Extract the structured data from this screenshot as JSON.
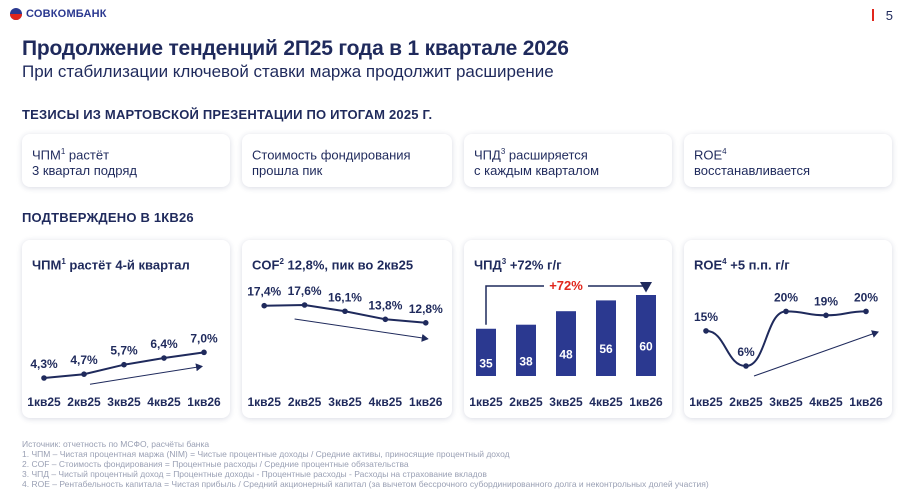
{
  "header": {
    "logo_text": "СОВКОМБАНК",
    "page_number": "5",
    "title": "Продолжение тенденций 2П25 года в 1 квартале 2026",
    "subtitle": "При стабилизации ключевой ставки маржа продолжит расширение"
  },
  "sections": {
    "theses_title": "ТЕЗИСЫ ИЗ МАРТОВСКОЙ ПРЕЗЕНТАЦИИ ПО ИТОГАМ 2025 Г.",
    "confirmed_title": "ПОДТВЕРЖДЕНО В 1КВ26"
  },
  "theses": [
    {
      "label": "ЧПМ",
      "sup": "1",
      "text": "растёт\n3 квартал подряд"
    },
    {
      "label": "Стоимость фондирования",
      "sup": "",
      "text": "\nпрошла пик"
    },
    {
      "label": "ЧПД",
      "sup": "3",
      "text": "расширяется\nс каждым кварталом"
    },
    {
      "label": "ROE",
      "sup": "4",
      "text": "\nвосстанавливается"
    }
  ],
  "cards": [
    {
      "label": "ЧПМ",
      "sup": "1",
      "text": "растёт 4-й квартал"
    },
    {
      "label": "COF",
      "sup": "2",
      "text": "12,8%, пик во 2кв25"
    },
    {
      "label": "ЧПД",
      "sup": "3",
      "text": "+72% г/г"
    },
    {
      "label": "ROE",
      "sup": "4",
      "text": "+5 п.п. г/г"
    }
  ],
  "colors": {
    "navy": "#1f2a5c",
    "bar": "#2b3990",
    "accent_red": "#e1261c",
    "footnote": "#9aa0b4"
  },
  "chart_data": [
    {
      "type": "line",
      "categories": [
        "1кв25",
        "2кв25",
        "3кв25",
        "4кв25",
        "1кв26"
      ],
      "values": [
        4.3,
        4.7,
        5.7,
        6.4,
        7.0
      ],
      "value_labels": [
        "4,3%",
        "4,7%",
        "5,7%",
        "6,4%",
        "7,0%"
      ],
      "trend": "up"
    },
    {
      "type": "line",
      "categories": [
        "1кв25",
        "2кв25",
        "3кв25",
        "4кв25",
        "1кв26"
      ],
      "values": [
        17.4,
        17.6,
        16.1,
        13.8,
        12.8
      ],
      "value_labels": [
        "17,4%",
        "17,6%",
        "16,1%",
        "13,8%",
        "12,8%"
      ],
      "trend": "down"
    },
    {
      "type": "bar",
      "categories": [
        "1кв25",
        "2кв25",
        "3кв25",
        "4кв25",
        "1кв26"
      ],
      "values": [
        35,
        38,
        48,
        56,
        60
      ],
      "value_labels": [
        "35",
        "38",
        "48",
        "56",
        "60"
      ],
      "annotation": "+72%"
    },
    {
      "type": "line",
      "categories": [
        "1кв25",
        "2кв25",
        "3кв25",
        "4кв25",
        "1кв26"
      ],
      "values": [
        15,
        6,
        20,
        19,
        20
      ],
      "value_labels": [
        "15%",
        "6%",
        "20%",
        "19%",
        "20%"
      ],
      "trend": "up"
    }
  ],
  "footnotes": [
    "Источник: отчетность по МСФО, расчёты банка",
    "1.    ЧПМ – Чистая процентная маржа (NIM) = Чистые процентные доходы / Средние активы, приносящие процентный доход",
    "2.    COF – Стоимость фондирования = Процентные расходы / Средние процентные обязательства",
    "3.    ЧПД – Чистый процентный доход = Процентные доходы - Процентные расходы - Расходы на страхование вкладов",
    "4.    ROE – Рентабельность капитала = Чистая прибыль / Средний акционерный капитал (за вычетом бессрочного субординированного долга и неконтрольных долей участия)"
  ]
}
